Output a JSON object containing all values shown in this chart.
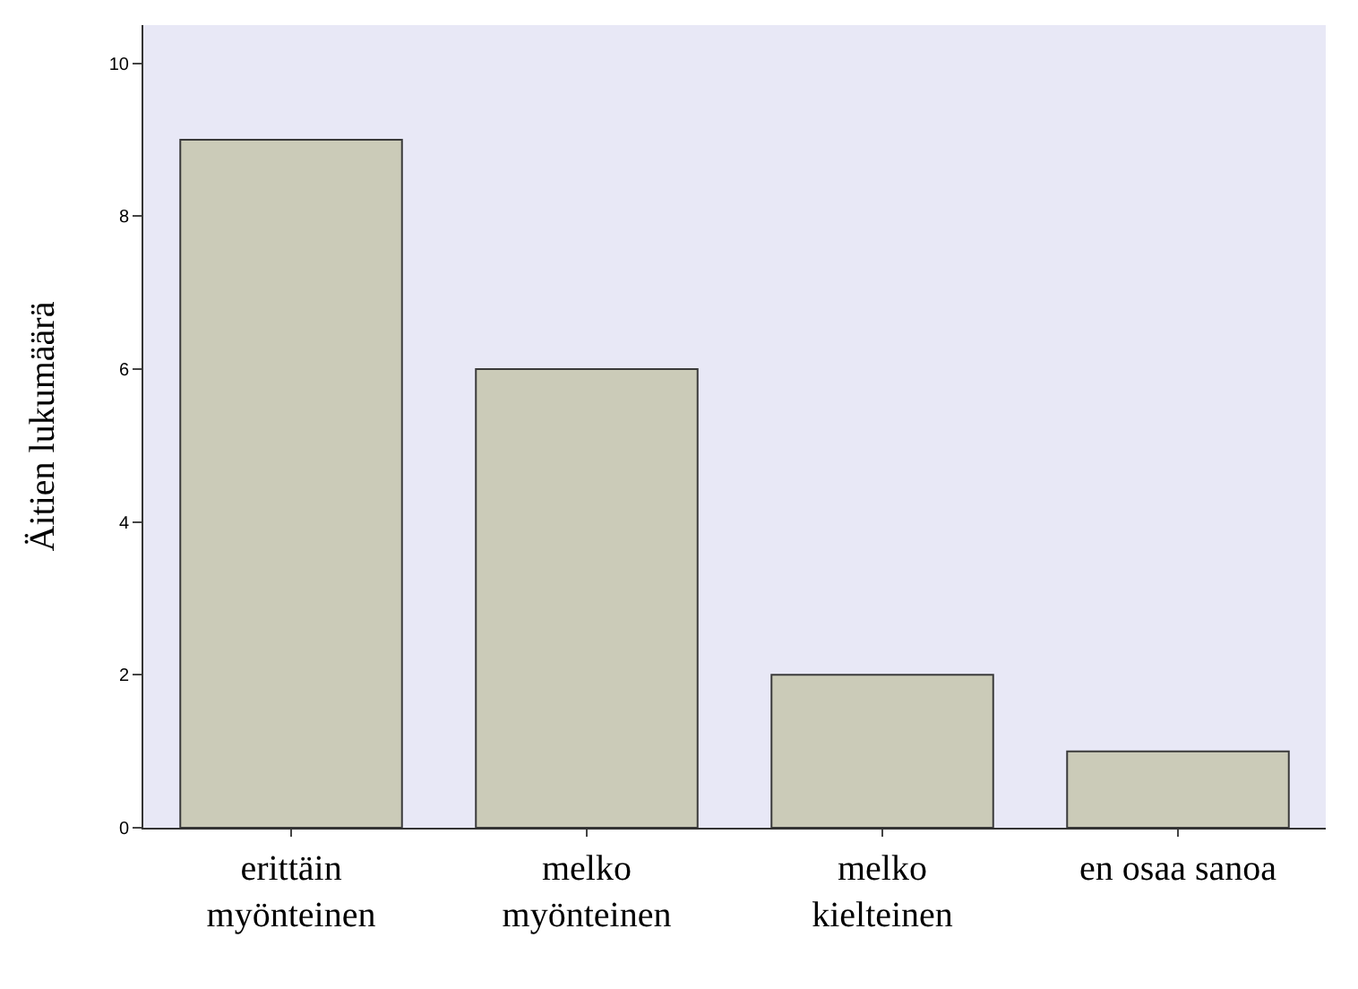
{
  "chart_data": {
    "type": "bar",
    "ylabel": "Äitien lukumäärä",
    "categories": [
      "erittäin myönteinen",
      "melko myönteinen",
      "melko kielteinen",
      "en osaa sanoa"
    ],
    "values": [
      9,
      6,
      2,
      1
    ],
    "color": "#cbcbb8",
    "ylim": [
      0,
      10.5
    ],
    "yticks": [
      0,
      2,
      4,
      6,
      8,
      10
    ],
    "grid": false
  }
}
